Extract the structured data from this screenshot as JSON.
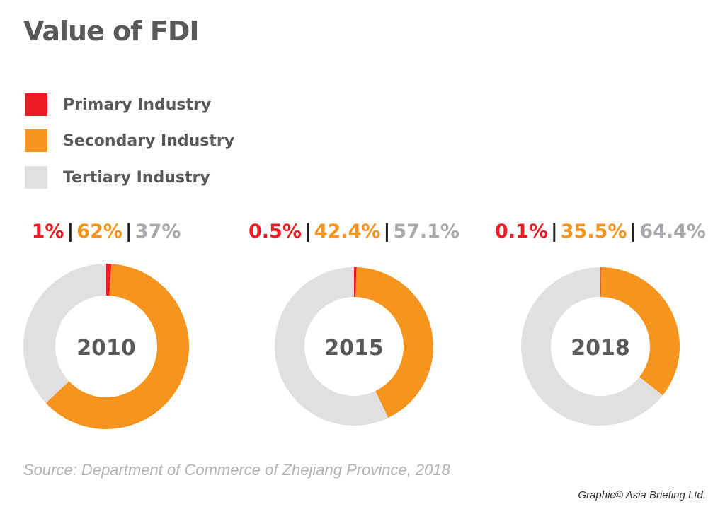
{
  "chart_data": {
    "type": "pie",
    "variant": "donut",
    "title": "Value of FDI",
    "legend": {
      "placement": "top-left",
      "entries": [
        {
          "name": "Primary Industry",
          "color": "#ed1c24"
        },
        {
          "name": "Secondary Industry",
          "color": "#f7941d"
        },
        {
          "name": "Tertiary Industry",
          "color": "#e0e0e0"
        }
      ]
    },
    "charts": [
      {
        "year": "2010",
        "values": [
          1,
          62,
          37
        ],
        "labels": [
          "1%",
          "62%",
          "37%"
        ]
      },
      {
        "year": "2015",
        "values": [
          0.5,
          42.4,
          57.1
        ],
        "labels": [
          "0.5%",
          "42.4%",
          "57.1%"
        ]
      },
      {
        "year": "2018",
        "values": [
          0.1,
          35.5,
          64.4
        ],
        "labels": [
          "0.1%",
          "35.5%",
          "64.4%"
        ]
      }
    ],
    "label_colors": [
      "#ed1c24",
      "#f7941d",
      "#a7a9ac"
    ],
    "source": "Source: Department of Commerce of Zhejiang Province, 2018",
    "credit": "Graphic© Asia Briefing Ltd."
  }
}
